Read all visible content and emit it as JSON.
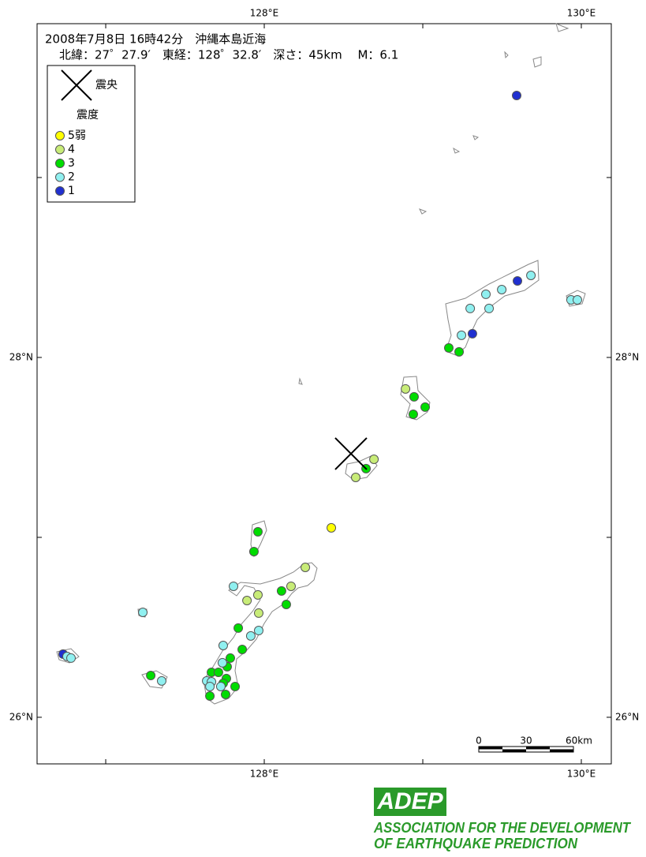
{
  "map_data": {
    "title": "2008年7月8日 16時42分　沖縄本島近海",
    "subtitle": "北緯：27゜27.9′　東経：128゜32.8′　深さ：45km　 M：6.1",
    "xlim": [
      126.567,
      130.189
    ],
    "ylim": [
      25.741,
      29.855
    ],
    "xticks": [
      {
        "value": 128,
        "label": "128°E"
      },
      {
        "value": 130,
        "label": "130°E"
      }
    ],
    "xticks_minor": [
      127,
      129
    ],
    "yticks": [
      {
        "value": 26,
        "label": "26°N"
      },
      {
        "value": 28,
        "label": "28°N"
      }
    ],
    "yticks_minor": [
      27,
      29
    ],
    "epicenter": {
      "label": "震央",
      "lon": 128.547,
      "lat": 27.465
    },
    "legend_title": "震度",
    "levels": [
      {
        "value": 5,
        "label": "5弱",
        "color": "#ffff00"
      },
      {
        "value": 4,
        "label": "4",
        "color": "#c8ec78"
      },
      {
        "value": 3,
        "label": "3",
        "color": "#00dc00"
      },
      {
        "value": 2,
        "label": "2",
        "color": "#90f0f0"
      },
      {
        "value": 1,
        "label": "1",
        "color": "#2030d0"
      }
    ],
    "stations": [
      {
        "lon": 129.592,
        "lat": 29.456,
        "intensity": 1
      },
      {
        "lon": 129.597,
        "lat": 28.425,
        "intensity": 1
      },
      {
        "lon": 129.682,
        "lat": 28.456,
        "intensity": 2
      },
      {
        "lon": 129.498,
        "lat": 28.377,
        "intensity": 2
      },
      {
        "lon": 129.398,
        "lat": 28.351,
        "intensity": 2
      },
      {
        "lon": 129.299,
        "lat": 28.272,
        "intensity": 2
      },
      {
        "lon": 129.418,
        "lat": 28.272,
        "intensity": 2
      },
      {
        "lon": 129.935,
        "lat": 28.32,
        "intensity": 2
      },
      {
        "lon": 129.975,
        "lat": 28.32,
        "intensity": 2
      },
      {
        "lon": 129.244,
        "lat": 28.123,
        "intensity": 2
      },
      {
        "lon": 129.313,
        "lat": 28.132,
        "intensity": 1
      },
      {
        "lon": 129.164,
        "lat": 28.053,
        "intensity": 3
      },
      {
        "lon": 129.229,
        "lat": 28.031,
        "intensity": 3
      },
      {
        "lon": 128.891,
        "lat": 27.825,
        "intensity": 4
      },
      {
        "lon": 128.945,
        "lat": 27.781,
        "intensity": 3
      },
      {
        "lon": 129.015,
        "lat": 27.724,
        "intensity": 3
      },
      {
        "lon": 128.94,
        "lat": 27.684,
        "intensity": 3
      },
      {
        "lon": 128.692,
        "lat": 27.434,
        "intensity": 4
      },
      {
        "lon": 128.642,
        "lat": 27.382,
        "intensity": 3
      },
      {
        "lon": 128.577,
        "lat": 27.333,
        "intensity": 4
      },
      {
        "lon": 128.423,
        "lat": 27.053,
        "intensity": 5
      },
      {
        "lon": 127.96,
        "lat": 27.031,
        "intensity": 3
      },
      {
        "lon": 127.935,
        "lat": 26.921,
        "intensity": 3
      },
      {
        "lon": 128.259,
        "lat": 26.833,
        "intensity": 4
      },
      {
        "lon": 128.169,
        "lat": 26.728,
        "intensity": 4
      },
      {
        "lon": 128.109,
        "lat": 26.702,
        "intensity": 3
      },
      {
        "lon": 128.139,
        "lat": 26.627,
        "intensity": 3
      },
      {
        "lon": 127.806,
        "lat": 26.728,
        "intensity": 2
      },
      {
        "lon": 127.96,
        "lat": 26.68,
        "intensity": 4
      },
      {
        "lon": 127.891,
        "lat": 26.649,
        "intensity": 4
      },
      {
        "lon": 127.965,
        "lat": 26.579,
        "intensity": 4
      },
      {
        "lon": 127.234,
        "lat": 26.583,
        "intensity": 2
      },
      {
        "lon": 127.836,
        "lat": 26.496,
        "intensity": 3
      },
      {
        "lon": 127.965,
        "lat": 26.482,
        "intensity": 2
      },
      {
        "lon": 127.915,
        "lat": 26.452,
        "intensity": 2
      },
      {
        "lon": 127.861,
        "lat": 26.377,
        "intensity": 3
      },
      {
        "lon": 127.741,
        "lat": 26.399,
        "intensity": 2
      },
      {
        "lon": 127.786,
        "lat": 26.329,
        "intensity": 3
      },
      {
        "lon": 127.766,
        "lat": 26.281,
        "intensity": 3
      },
      {
        "lon": 127.736,
        "lat": 26.303,
        "intensity": 2
      },
      {
        "lon": 127.667,
        "lat": 26.25,
        "intensity": 3
      },
      {
        "lon": 127.711,
        "lat": 26.25,
        "intensity": 3
      },
      {
        "lon": 127.637,
        "lat": 26.202,
        "intensity": 2
      },
      {
        "lon": 127.667,
        "lat": 26.197,
        "intensity": 2
      },
      {
        "lon": 127.761,
        "lat": 26.215,
        "intensity": 3
      },
      {
        "lon": 127.741,
        "lat": 26.189,
        "intensity": 3
      },
      {
        "lon": 127.726,
        "lat": 26.171,
        "intensity": 2
      },
      {
        "lon": 127.657,
        "lat": 26.171,
        "intensity": 2
      },
      {
        "lon": 127.816,
        "lat": 26.171,
        "intensity": 3
      },
      {
        "lon": 127.657,
        "lat": 26.118,
        "intensity": 3
      },
      {
        "lon": 127.756,
        "lat": 26.127,
        "intensity": 3
      },
      {
        "lon": 127.284,
        "lat": 26.232,
        "intensity": 3
      },
      {
        "lon": 127.353,
        "lat": 26.202,
        "intensity": 2
      },
      {
        "lon": 126.731,
        "lat": 26.351,
        "intensity": 1
      },
      {
        "lon": 126.756,
        "lat": 26.338,
        "intensity": 2
      },
      {
        "lon": 126.781,
        "lat": 26.329,
        "intensity": 2
      }
    ],
    "scale_bar": {
      "labels": [
        "0",
        "30",
        "60km"
      ]
    },
    "logo": {
      "name": "ADEP",
      "line1": "ASSOCIATION FOR THE DEVELOPMENT",
      "line2": "OF EARTHQUAKE PREDICTION"
    }
  }
}
